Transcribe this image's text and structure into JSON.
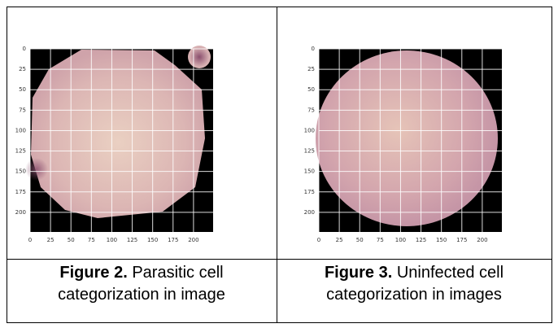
{
  "figures": [
    {
      "image": {
        "yticks": [
          0,
          25,
          50,
          75,
          100,
          125,
          150,
          175,
          200
        ],
        "xticks": [
          0,
          25,
          50,
          75,
          100,
          125,
          150,
          175,
          200
        ]
      },
      "label": "Figure 2.",
      "text": "Parasitic cell categorization in image"
    },
    {
      "image": {
        "yticks": [
          0,
          25,
          50,
          75,
          100,
          125,
          150,
          175,
          200
        ],
        "xticks": [
          0,
          25,
          50,
          75,
          100,
          125,
          150,
          175,
          200
        ]
      },
      "label": "Figure 3.",
      "text": "Uninfected cell categorization in images"
    }
  ]
}
